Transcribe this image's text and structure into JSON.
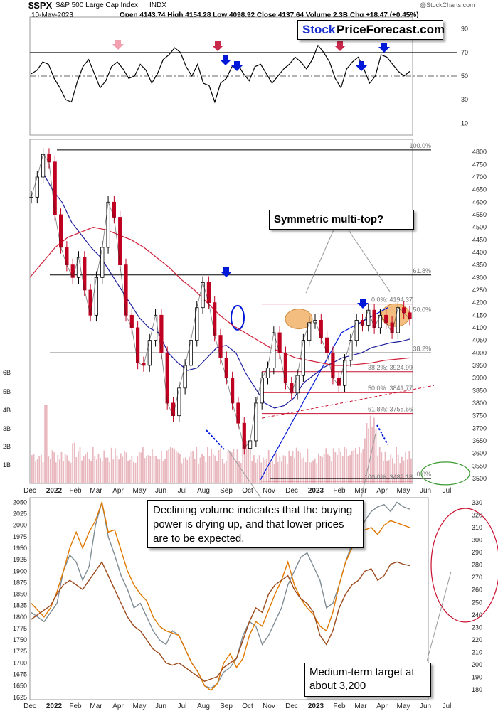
{
  "header": {
    "symbol": "$SPX",
    "name": "S&P 500 Large Cap Index",
    "exchange": "INDX",
    "date": "10-May-2023",
    "watermark": "@StockCharts.com",
    "ohlc_line": "Open 4143.74  High 4154.28  Low 4098.92  Close 4137.64  Volume 2.3B  Chg +18.47 (+0.45%)",
    "logo_part1": "Stock",
    "logo_part2": "PriceForecast.com"
  },
  "callouts": {
    "top": "Symmetric multi-top?",
    "volume": "Declining volume indicates that the buying power is drying up, and that lower prices are to be expected.",
    "target": "Medium-term target at about 3,200"
  },
  "colors": {
    "price_up": "#000000",
    "price_down": "#c00020",
    "ma_short": "#1c1c9c",
    "ma_long": "#d0203a",
    "fib": "#c8102e",
    "volume": "#e0a0a8",
    "gold": "#e07800",
    "silver": "#7f8c94",
    "miners": "#9c4a1c",
    "highlight": "#f3b26a",
    "arrow_blue": "#0018d8",
    "arrow_red": "#c8284a",
    "arrow_pink": "#f2a0b0"
  },
  "chart_data": [
    {
      "type": "line",
      "panel": "RSI (14)",
      "y_ticks": [
        10,
        30,
        50,
        70,
        90
      ],
      "ylim": [
        0,
        100
      ],
      "reference_lines": [
        70,
        50,
        28
      ],
      "series": [
        {
          "values": [
            52,
            55,
            62,
            60,
            48,
            40,
            30,
            28,
            45,
            58,
            64,
            52,
            40,
            46,
            58,
            62,
            56,
            48,
            50,
            60,
            55,
            44,
            52,
            64,
            68,
            74,
            70,
            58,
            50,
            60,
            44,
            42,
            28,
            44,
            48,
            58,
            60,
            52,
            46,
            58,
            60,
            52,
            44,
            50,
            56,
            60,
            66,
            62,
            56,
            64,
            76,
            70,
            62,
            48,
            40,
            56,
            62,
            66,
            56,
            44,
            50,
            68,
            66,
            60,
            54,
            50,
            54
          ]
        }
      ]
    },
    {
      "type": "line",
      "panel": "price",
      "x_tick_labels": [
        "Dec",
        "2022",
        "Feb",
        "Mar",
        "Apr",
        "May",
        "Jun",
        "Jul",
        "Aug",
        "Sep",
        "Oct",
        "Nov",
        "Dec",
        "2023",
        "Feb",
        "Mar",
        "Apr",
        "May",
        "Jun",
        "Jul"
      ],
      "y_ticks": [
        3500,
        3550,
        3600,
        3650,
        3700,
        3750,
        3800,
        3850,
        3900,
        3950,
        4000,
        4050,
        4100,
        4150,
        4200,
        4250,
        4300,
        4350,
        4400,
        4450,
        4500,
        4550,
        4600,
        4650,
        4700,
        4750,
        4800
      ],
      "ylim": [
        3480,
        4850
      ],
      "volume_ticks": [
        "1B",
        "2B",
        "3B",
        "4B",
        "5B",
        "6B"
      ],
      "retracement_levels": [
        {
          "label": "100.0%",
          "value": 4808
        },
        {
          "label": "61.8%",
          "value": 4310
        },
        {
          "label": "50.0%",
          "value": 4155
        },
        {
          "label": "38.2%",
          "value": 4000
        },
        {
          "label": "0.0%",
          "value": 3500
        }
      ],
      "projection_levels": [
        {
          "label": "0.0%: 4194.37",
          "value": 4194.37
        },
        {
          "label": "38.2%: 3924.99",
          "value": 3924.99
        },
        {
          "label": "50.0%: 3841.77",
          "value": 3841.77
        },
        {
          "label": "61.8%: 3758.56",
          "value": 3758.56
        },
        {
          "label": "100.0%: 3489.18",
          "value": 3489.18
        }
      ],
      "series": [
        {
          "values": [
            4620,
            4700,
            4790,
            4760,
            4550,
            4420,
            4350,
            4300,
            4380,
            4250,
            4150,
            4300,
            4420,
            4600,
            4540,
            4350,
            4150,
            4100,
            3960,
            3950,
            4050,
            4150,
            4000,
            3800,
            3750,
            3860,
            3950,
            4050,
            4180,
            4280,
            4200,
            4070,
            3980,
            3900,
            3800,
            3720,
            3620,
            3650,
            3800,
            3900,
            3940,
            4080,
            4000,
            3880,
            3840,
            3910,
            4050,
            4120,
            4130,
            4060,
            4000,
            3900,
            3870,
            3970,
            4050,
            4130,
            4110,
            4170,
            4100,
            4150,
            4120,
            4080,
            4180,
            4160,
            4135
          ]
        },
        {
          "values": [
            4720,
            4650,
            4600,
            4520,
            4470,
            4420,
            4380,
            4320,
            4260,
            4200,
            4140,
            4100,
            4080,
            4000,
            3960,
            3930,
            3940,
            3980,
            4020,
            4030,
            4000,
            3920,
            3860,
            3800,
            3780,
            3790,
            3820,
            3880,
            3910,
            3940,
            3960,
            3980,
            3990,
            4000,
            4020,
            4030,
            4040,
            4045,
            4055
          ]
        },
        {
          "values": [
            4300,
            4360,
            4420,
            4460,
            4480,
            4500,
            4490,
            4470,
            4450,
            4420,
            4380,
            4340,
            4290,
            4250,
            4200,
            4150,
            4110,
            4080,
            4050,
            4020,
            4000,
            3980,
            3970,
            3960,
            3950,
            3950,
            3955,
            3960,
            3970,
            3975,
            3980
          ]
        }
      ]
    },
    {
      "type": "line",
      "panel": "gold, silver and mining stocks",
      "left_axis_ticks": [
        1625,
        1650,
        1675,
        1700,
        1725,
        1750,
        1775,
        1800,
        1825,
        1850,
        1875,
        1900,
        1925,
        1950,
        1975,
        2000,
        2025,
        2050
      ],
      "left_ylim": [
        1620,
        2060
      ],
      "right_axis_ticks": [
        180,
        190,
        200,
        210,
        220,
        230,
        240,
        250,
        260,
        270,
        280,
        290,
        300,
        310,
        320,
        330
      ],
      "right_ylim": [
        172,
        334
      ],
      "series": [
        {
          "values": [
            1810,
            1800,
            1790,
            1810,
            1830,
            1900,
            1935,
            1920,
            1880,
            1910,
            2000,
            2050,
            1975,
            1935,
            1890,
            1860,
            1820,
            1830,
            1800,
            1770,
            1750,
            1740,
            1770,
            1760,
            1730,
            1700,
            1680,
            1650,
            1645,
            1655,
            1680,
            1690,
            1710,
            1760,
            1790,
            1780,
            1740,
            1760,
            1790,
            1820,
            1870,
            1900,
            1930,
            1940,
            1910,
            1880,
            1820,
            1830,
            1870,
            1920,
            1960,
            1980,
            2010,
            2030,
            2040,
            2045,
            2030,
            2050,
            2040,
            2035
          ]
        },
        {
          "values": [
            1830,
            1815,
            1800,
            1820,
            1855,
            1900,
            1950,
            1985,
            1950,
            1985,
            2010,
            2050,
            1985,
            1990,
            1945,
            1900,
            1870,
            1850,
            1835,
            1800,
            1780,
            1770,
            1765,
            1760,
            1730,
            1700,
            1680,
            1650,
            1640,
            1655,
            1700,
            1720,
            1690,
            1710,
            1760,
            1790,
            1780,
            1815,
            1850,
            1880,
            1920,
            1870,
            1840,
            1820,
            1805,
            1780,
            1770,
            1810,
            1870,
            1920,
            1950,
            1980,
            1990,
            1995,
            1980,
            2000,
            2010,
            2005,
            2000,
            1995
          ]
        },
        {
          "values": [
            1795,
            1805,
            1815,
            1825,
            1850,
            1870,
            1880,
            1870,
            1860,
            1880,
            1900,
            1920,
            1890,
            1860,
            1830,
            1800,
            1780,
            1770,
            1750,
            1730,
            1720,
            1700,
            1695,
            1700,
            1690,
            1680,
            1670,
            1660,
            1665,
            1670,
            1690,
            1700,
            1710,
            1750,
            1790,
            1820,
            1810,
            1850,
            1870,
            1880,
            1890,
            1860,
            1840,
            1830,
            1810,
            1760,
            1740,
            1770,
            1820,
            1850,
            1870,
            1880,
            1900,
            1905,
            1880,
            1890,
            1915,
            1920,
            1915,
            1912
          ]
        }
      ]
    }
  ]
}
